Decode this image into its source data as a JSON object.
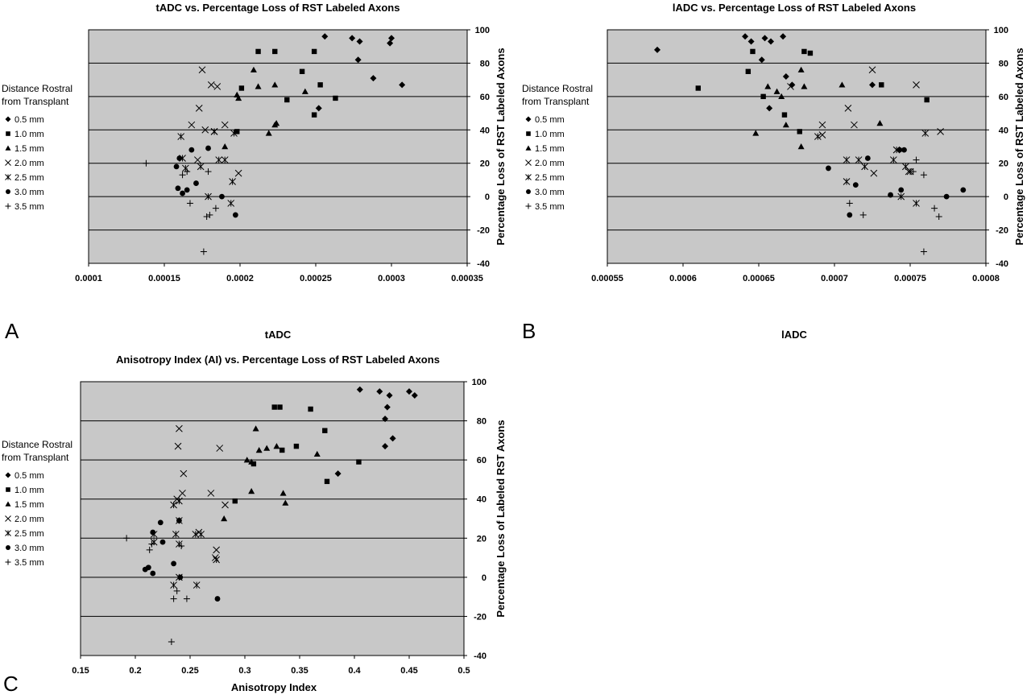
{
  "colors": {
    "plot_bg": "#c8c8c8",
    "gridline": "#000000",
    "marker": "#000000",
    "page_bg": "#ffffff"
  },
  "legend": {
    "title_lines": [
      "Distance Rostral",
      "from Transplant"
    ],
    "entries": [
      {
        "symbol": "diamond",
        "label": "0.5 mm"
      },
      {
        "symbol": "square",
        "label": "1.0 mm"
      },
      {
        "symbol": "triangle",
        "label": "1.5 mm"
      },
      {
        "symbol": "x",
        "label": "2.0 mm"
      },
      {
        "symbol": "asterisk",
        "label": "2.5 mm"
      },
      {
        "symbol": "circle",
        "label": "3.0 mm"
      },
      {
        "symbol": "plus",
        "label": "3.5 mm"
      }
    ]
  },
  "chart_data": [
    {
      "panel": "A",
      "type": "scatter",
      "title": "tADC vs. Percentage Loss of RST Labeled Axons",
      "xlabel": "tADC",
      "ylabel": "Percentage Loss of RST Labeled Axons",
      "xlim": [
        0.0001,
        0.00035
      ],
      "xticks": [
        "0.0001",
        "0.00015",
        "0.0002",
        "0.00025",
        "0.0003",
        "0.00035"
      ],
      "ylim": [
        -40,
        100
      ],
      "yticks": [
        "-40",
        "-20",
        "0",
        "20",
        "40",
        "60",
        "80",
        "100"
      ],
      "ygrid": true,
      "yaxis_side": "right",
      "legend_position": "left",
      "series": [
        {
          "name": "0.5 mm",
          "symbol": "diamond",
          "points": [
            [
              0.000256,
              96
            ],
            [
              0.000274,
              95
            ],
            [
              0.000279,
              93
            ],
            [
              0.0003,
              95
            ],
            [
              0.000299,
              92
            ],
            [
              0.000278,
              82
            ],
            [
              0.000288,
              71
            ],
            [
              0.000307,
              67
            ],
            [
              0.000252,
              53
            ]
          ]
        },
        {
          "name": "1.0 mm",
          "symbol": "square",
          "points": [
            [
              0.000212,
              87
            ],
            [
              0.000223,
              87
            ],
            [
              0.000249,
              87
            ],
            [
              0.000241,
              75
            ],
            [
              0.000201,
              65
            ],
            [
              0.000253,
              67
            ],
            [
              0.000263,
              59
            ],
            [
              0.000231,
              58
            ],
            [
              0.000249,
              49
            ],
            [
              0.000198,
              39
            ]
          ]
        },
        {
          "name": "1.5 mm",
          "symbol": "triangle",
          "points": [
            [
              0.000209,
              76
            ],
            [
              0.000212,
              66
            ],
            [
              0.000223,
              67
            ],
            [
              0.000243,
              63
            ],
            [
              0.000198,
              61
            ],
            [
              0.000199,
              59
            ],
            [
              0.000224,
              44
            ],
            [
              0.000223,
              43
            ],
            [
              0.000219,
              38
            ],
            [
              0.00019,
              30
            ]
          ]
        },
        {
          "name": "2.0 mm",
          "symbol": "x",
          "points": [
            [
              0.000175,
              76
            ],
            [
              0.000181,
              67
            ],
            [
              0.000185,
              66
            ],
            [
              0.000173,
              53
            ],
            [
              0.000168,
              43
            ],
            [
              0.00019,
              43
            ],
            [
              0.000183,
              39
            ],
            [
              0.000177,
              40
            ],
            [
              0.000172,
              22
            ],
            [
              0.000199,
              14
            ]
          ]
        },
        {
          "name": "2.5 mm",
          "symbol": "asterisk",
          "points": [
            [
              0.000161,
              36
            ],
            [
              0.000183,
              39
            ],
            [
              0.000196,
              38
            ],
            [
              0.000162,
              23
            ],
            [
              0.000174,
              18
            ],
            [
              0.000186,
              22
            ],
            [
              0.00019,
              22
            ],
            [
              0.000164,
              17
            ],
            [
              0.000195,
              9
            ],
            [
              0.000179,
              0
            ],
            [
              0.000194,
              -4
            ]
          ]
        },
        {
          "name": "3.0 mm",
          "symbol": "circle",
          "points": [
            [
              0.000168,
              28
            ],
            [
              0.000179,
              29
            ],
            [
              0.00016,
              23
            ],
            [
              0.000158,
              18
            ],
            [
              0.000171,
              8
            ],
            [
              0.000159,
              5
            ],
            [
              0.000165,
              4
            ],
            [
              0.000162,
              2
            ],
            [
              0.000188,
              0
            ],
            [
              0.000197,
              -11
            ]
          ]
        },
        {
          "name": "3.5 mm",
          "symbol": "plus",
          "points": [
            [
              0.000138,
              20
            ],
            [
              0.000165,
              15
            ],
            [
              0.000179,
              15
            ],
            [
              0.000162,
              13
            ],
            [
              0.000167,
              -4
            ],
            [
              0.000184,
              -7
            ],
            [
              0.00018,
              -11
            ],
            [
              0.000178,
              -12
            ],
            [
              0.000176,
              -33
            ]
          ]
        }
      ]
    },
    {
      "panel": "B",
      "type": "scatter",
      "title": "lADC vs. Percentage Loss of RST Labeled Axons",
      "xlabel": "lADC",
      "ylabel": "Percentage Loss of RST Labeled Axons",
      "xlim": [
        0.00055,
        0.0008
      ],
      "xticks": [
        "0.00055",
        "0.0006",
        "0.00065",
        "0.0007",
        "0.00075",
        "0.0008"
      ],
      "ylim": [
        -40,
        100
      ],
      "yticks": [
        "-40",
        "-20",
        "0",
        "20",
        "40",
        "60",
        "80",
        "100"
      ],
      "ygrid": true,
      "yaxis_side": "right",
      "legend_position": "left",
      "series": [
        {
          "name": "0.5 mm",
          "symbol": "diamond",
          "points": [
            [
              0.000583,
              88
            ],
            [
              0.000641,
              96
            ],
            [
              0.000645,
              93
            ],
            [
              0.000654,
              95
            ],
            [
              0.000658,
              93
            ],
            [
              0.000666,
              96
            ],
            [
              0.000652,
              82
            ],
            [
              0.000668,
              72
            ],
            [
              0.000672,
              67
            ],
            [
              0.000725,
              67
            ],
            [
              0.000657,
              53
            ]
          ]
        },
        {
          "name": "1.0 mm",
          "symbol": "square",
          "points": [
            [
              0.000646,
              87
            ],
            [
              0.00068,
              87
            ],
            [
              0.000684,
              86
            ],
            [
              0.000643,
              75
            ],
            [
              0.00061,
              65
            ],
            [
              0.000731,
              67
            ],
            [
              0.000653,
              60
            ],
            [
              0.000761,
              58
            ],
            [
              0.000667,
              49
            ],
            [
              0.000677,
              39
            ]
          ]
        },
        {
          "name": "1.5 mm",
          "symbol": "triangle",
          "points": [
            [
              0.000678,
              76
            ],
            [
              0.000656,
              66
            ],
            [
              0.000662,
              63
            ],
            [
              0.000665,
              60
            ],
            [
              0.00068,
              66
            ],
            [
              0.000705,
              67
            ],
            [
              0.000648,
              38
            ],
            [
              0.000668,
              43
            ],
            [
              0.00073,
              44
            ],
            [
              0.000678,
              30
            ]
          ]
        },
        {
          "name": "2.0 mm",
          "symbol": "x",
          "points": [
            [
              0.000725,
              76
            ],
            [
              0.000671,
              66
            ],
            [
              0.000754,
              67
            ],
            [
              0.000709,
              53
            ],
            [
              0.000692,
              43
            ],
            [
              0.000713,
              43
            ],
            [
              0.00077,
              39
            ],
            [
              0.000692,
              37
            ],
            [
              0.000726,
              14
            ],
            [
              0.000749,
              15
            ]
          ]
        },
        {
          "name": "2.5 mm",
          "symbol": "asterisk",
          "points": [
            [
              0.000689,
              36
            ],
            [
              0.00076,
              38
            ],
            [
              0.000741,
              28
            ],
            [
              0.000708,
              22
            ],
            [
              0.000716,
              22
            ],
            [
              0.000739,
              22
            ],
            [
              0.000747,
              18
            ],
            [
              0.00072,
              18
            ],
            [
              0.00075,
              15
            ],
            [
              0.000708,
              9
            ],
            [
              0.000744,
              0
            ],
            [
              0.000754,
              -4
            ]
          ]
        },
        {
          "name": "3.0 mm",
          "symbol": "circle",
          "points": [
            [
              0.000743,
              28
            ],
            [
              0.000746,
              28
            ],
            [
              0.000722,
              23
            ],
            [
              0.000696,
              17
            ],
            [
              0.000714,
              7
            ],
            [
              0.000744,
              4
            ],
            [
              0.000737,
              1
            ],
            [
              0.000774,
              0
            ],
            [
              0.000785,
              4
            ],
            [
              0.00071,
              -11
            ]
          ]
        },
        {
          "name": "3.5 mm",
          "symbol": "plus",
          "points": [
            [
              0.000754,
              22
            ],
            [
              0.000752,
              15
            ],
            [
              0.000759,
              13
            ],
            [
              0.00071,
              -4
            ],
            [
              0.000766,
              -7
            ],
            [
              0.000719,
              -11
            ],
            [
              0.000769,
              -12
            ],
            [
              0.000759,
              -33
            ]
          ]
        }
      ]
    },
    {
      "panel": "C",
      "type": "scatter",
      "title": "Anisotropy Index (AI) vs. Percentage Loss of RST Labeled Axons",
      "xlabel": "Anisotropy Index",
      "ylabel": "Percentage Loss of Labeled RST Axons",
      "xlim": [
        0.15,
        0.5
      ],
      "xticks": [
        "0.15",
        "0.2",
        "0.25",
        "0.3",
        "0.35",
        "0.4",
        "0.45",
        "0.5"
      ],
      "ylim": [
        -40,
        100
      ],
      "yticks": [
        "-40",
        "-20",
        "0",
        "20",
        "40",
        "60",
        "80",
        "100"
      ],
      "ygrid": true,
      "yaxis_side": "right",
      "legend_position": "left",
      "series": [
        {
          "name": "0.5 mm",
          "symbol": "diamond",
          "points": [
            [
              0.405,
              96
            ],
            [
              0.423,
              95
            ],
            [
              0.432,
              93
            ],
            [
              0.45,
              95
            ],
            [
              0.455,
              93
            ],
            [
              0.43,
              87
            ],
            [
              0.428,
              81
            ],
            [
              0.435,
              71
            ],
            [
              0.428,
              67
            ],
            [
              0.385,
              53
            ]
          ]
        },
        {
          "name": "1.0 mm",
          "symbol": "square",
          "points": [
            [
              0.327,
              87
            ],
            [
              0.332,
              87
            ],
            [
              0.36,
              86
            ],
            [
              0.373,
              75
            ],
            [
              0.347,
              67
            ],
            [
              0.334,
              65
            ],
            [
              0.404,
              59
            ],
            [
              0.308,
              58
            ],
            [
              0.375,
              49
            ],
            [
              0.291,
              39
            ]
          ]
        },
        {
          "name": "1.5 mm",
          "symbol": "triangle",
          "points": [
            [
              0.31,
              76
            ],
            [
              0.32,
              66
            ],
            [
              0.329,
              67
            ],
            [
              0.313,
              65
            ],
            [
              0.302,
              60
            ],
            [
              0.306,
              59
            ],
            [
              0.366,
              63
            ],
            [
              0.306,
              44
            ],
            [
              0.335,
              43
            ],
            [
              0.337,
              38
            ],
            [
              0.281,
              30
            ]
          ]
        },
        {
          "name": "2.0 mm",
          "symbol": "x",
          "points": [
            [
              0.24,
              76
            ],
            [
              0.239,
              67
            ],
            [
              0.277,
              66
            ],
            [
              0.244,
              53
            ],
            [
              0.243,
              43
            ],
            [
              0.269,
              43
            ],
            [
              0.238,
              40
            ],
            [
              0.282,
              37
            ],
            [
              0.258,
              23
            ],
            [
              0.274,
              14
            ],
            [
              0.273,
              10
            ]
          ]
        },
        {
          "name": "2.5 mm",
          "symbol": "asterisk",
          "points": [
            [
              0.235,
              37
            ],
            [
              0.24,
              39
            ],
            [
              0.24,
              29
            ],
            [
              0.217,
              22
            ],
            [
              0.237,
              22
            ],
            [
              0.26,
              22
            ],
            [
              0.255,
              22
            ],
            [
              0.217,
              18
            ],
            [
              0.24,
              17
            ],
            [
              0.274,
              9
            ],
            [
              0.24,
              0
            ],
            [
              0.235,
              -4
            ],
            [
              0.256,
              -4
            ]
          ]
        },
        {
          "name": "3.0 mm",
          "symbol": "circle",
          "points": [
            [
              0.223,
              28
            ],
            [
              0.24,
              29
            ],
            [
              0.216,
              23
            ],
            [
              0.225,
              18
            ],
            [
              0.235,
              7
            ],
            [
              0.209,
              4
            ],
            [
              0.212,
              5
            ],
            [
              0.216,
              2
            ],
            [
              0.241,
              0
            ],
            [
              0.275,
              -11
            ]
          ]
        },
        {
          "name": "3.5 mm",
          "symbol": "plus",
          "points": [
            [
              0.192,
              20
            ],
            [
              0.215,
              17
            ],
            [
              0.213,
              14
            ],
            [
              0.242,
              16
            ],
            [
              0.238,
              -7
            ],
            [
              0.235,
              -11
            ],
            [
              0.247,
              -11
            ],
            [
              0.233,
              -33
            ]
          ]
        }
      ]
    }
  ]
}
